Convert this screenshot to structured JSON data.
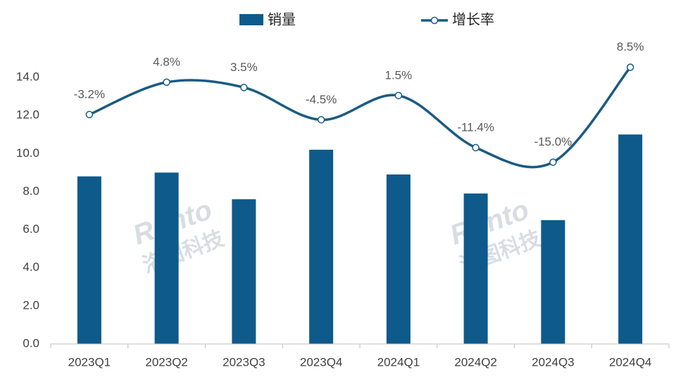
{
  "chart_data": {
    "type": "bar_line",
    "categories": [
      "2023Q1",
      "2023Q2",
      "2023Q3",
      "2023Q4",
      "2024Q1",
      "2024Q2",
      "2024Q3",
      "2024Q4"
    ],
    "series": [
      {
        "name": "销量",
        "type": "bar",
        "color": "#0e5a8a",
        "values": [
          8.8,
          9.0,
          7.6,
          10.2,
          8.9,
          7.9,
          6.5,
          11.0
        ]
      },
      {
        "name": "增长率",
        "type": "line",
        "axis": "y2",
        "color": "#1a5b82",
        "smooth": true,
        "values": [
          -3.2,
          4.8,
          3.5,
          -4.5,
          1.5,
          -11.4,
          -15.0,
          8.5
        ],
        "value_labels": [
          "-3.2%",
          "4.8%",
          "3.5%",
          "-4.5%",
          "1.5%",
          "-11.4%",
          "-15.0%",
          "8.5%"
        ]
      }
    ],
    "ylim": [
      0,
      14
    ],
    "yticks": [
      {
        "value": 0,
        "label": "0.0"
      },
      {
        "value": 2,
        "label": "2.0"
      },
      {
        "value": 4,
        "label": "4.0"
      },
      {
        "value": 6,
        "label": "6.0"
      },
      {
        "value": 8,
        "label": "8.0"
      },
      {
        "value": 10,
        "label": "10.0"
      },
      {
        "value": 12,
        "label": "12.0"
      },
      {
        "value": 14,
        "label": "14.0"
      }
    ],
    "y2lim": [
      -60,
      6
    ],
    "legend": "top",
    "watermark": [
      "Runto",
      "洛图科技"
    ]
  }
}
